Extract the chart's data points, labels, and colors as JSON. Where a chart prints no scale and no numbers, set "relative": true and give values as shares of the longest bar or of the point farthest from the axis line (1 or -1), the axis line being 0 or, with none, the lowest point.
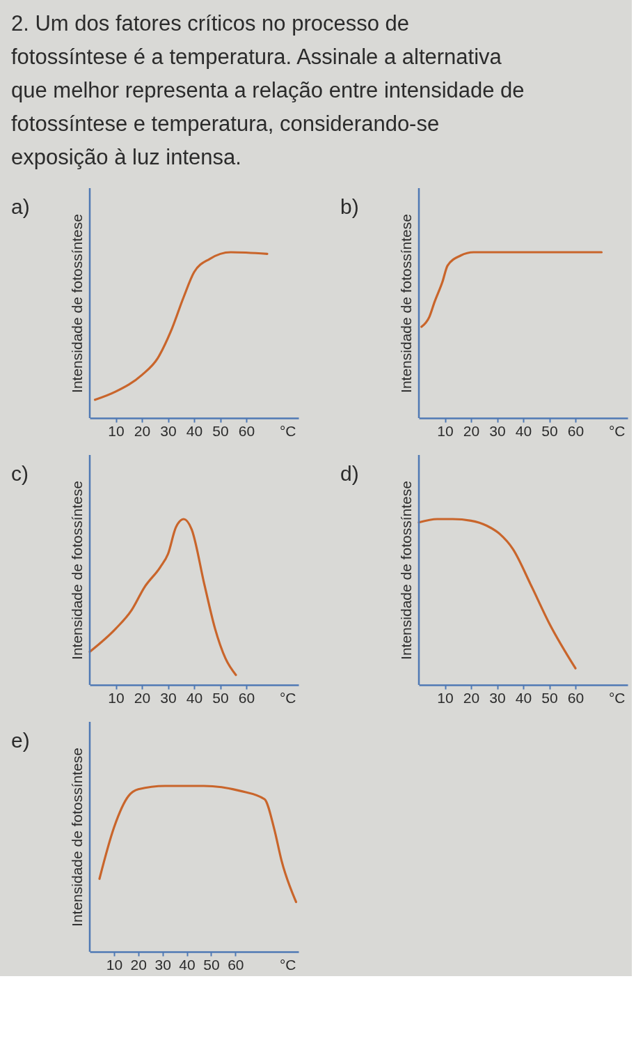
{
  "chart_data": [
    {
      "type": "line",
      "title": "a)",
      "annotations": [
        "2. Um dos fatores críticos no processo de fotossíntese é a temperatura. Assinale a alternativa que melhor representa a relação entre intensidade de fotossíntese e temperatura, considerando-se exposição à luz intensa."
      ],
      "xlabel": "°C",
      "ylabel": "Intensidade de fotossíntese",
      "relative": true,
      "tick_labels": "x",
      "xlim": [
        0,
        80
      ],
      "xticks": [
        10,
        20,
        30,
        40,
        50,
        60
      ],
      "x": [
        2,
        10,
        20,
        26,
        31,
        36,
        40,
        46,
        54,
        68
      ],
      "series": [
        {
          "color": "#c9652b",
          "values": [
            0.11,
            0.16,
            0.26,
            0.36,
            0.52,
            0.73,
            0.88,
            0.96,
            1.0,
            0.99
          ]
        }
      ]
    },
    {
      "type": "line",
      "title": "b)",
      "xlabel": "°C",
      "ylabel": "Intensidade de fotossíntese",
      "relative": true,
      "tick_labels": "x",
      "xlim": [
        0,
        80
      ],
      "xticks": [
        10,
        20,
        30,
        40,
        50,
        60
      ],
      "x": [
        1,
        4,
        6,
        9,
        11,
        16,
        21,
        45,
        70
      ],
      "series": [
        {
          "color": "#c9652b",
          "values": [
            0.55,
            0.61,
            0.7,
            0.82,
            0.92,
            0.98,
            1.0,
            1.0,
            1.0
          ]
        }
      ]
    },
    {
      "type": "line",
      "title": "c)",
      "xlabel": "°C",
      "ylabel": "Intensidade de fotossíntese",
      "relative": true,
      "tick_labels": "x",
      "xlim": [
        0,
        80
      ],
      "xticks": [
        10,
        20,
        30,
        40,
        50,
        60
      ],
      "x": [
        0,
        10,
        16,
        21,
        27,
        30,
        33,
        36,
        39,
        44,
        48,
        52,
        56
      ],
      "series": [
        {
          "color": "#c9652b",
          "values": [
            0.2,
            0.34,
            0.45,
            0.59,
            0.71,
            0.79,
            0.95,
            1.0,
            0.94,
            0.6,
            0.34,
            0.16,
            0.06
          ]
        }
      ]
    },
    {
      "type": "line",
      "title": "d)",
      "xlabel": "°C",
      "ylabel": "Intensidade de fotossíntese",
      "relative": true,
      "tick_labels": "x",
      "xlim": [
        0,
        80
      ],
      "xticks": [
        10,
        20,
        30,
        40,
        50,
        60
      ],
      "x": [
        0,
        7,
        13,
        20,
        26,
        31,
        36,
        43,
        50,
        60
      ],
      "series": [
        {
          "color": "#c9652b",
          "values": [
            0.98,
            1.0,
            1.0,
            0.99,
            0.96,
            0.91,
            0.82,
            0.6,
            0.37,
            0.1
          ]
        }
      ]
    },
    {
      "type": "line",
      "title": "e)",
      "xlabel": "°C",
      "ylabel": "Intensidade de fotossíntese",
      "relative": true,
      "tick_labels": "x",
      "xlim": [
        0,
        86
      ],
      "xticks": [
        10,
        20,
        30,
        40,
        50,
        60
      ],
      "x": [
        4,
        10,
        16,
        20,
        31,
        47,
        62,
        72,
        76,
        79,
        85
      ],
      "series": [
        {
          "color": "#c9652b",
          "values": [
            0.44,
            0.75,
            0.94,
            0.98,
            1.0,
            1.0,
            0.97,
            0.92,
            0.74,
            0.55,
            0.3
          ]
        }
      ]
    }
  ]
}
